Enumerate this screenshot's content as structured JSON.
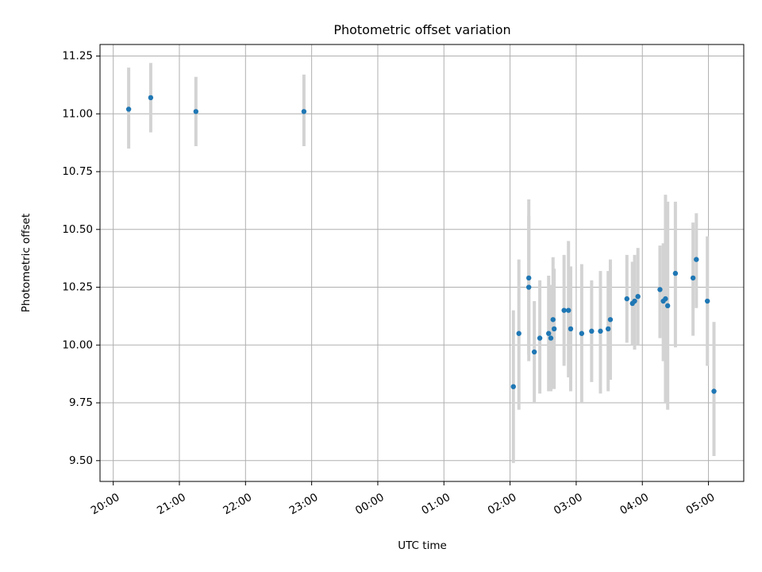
{
  "chart_data": {
    "type": "scatter",
    "title": "Photometric offset variation",
    "xlabel": "UTC time",
    "ylabel": "Photometric offset",
    "grid": true,
    "x_unit": "UTC time (HH:MM)",
    "xlim": [
      "19:48",
      "05:32"
    ],
    "ylim": [
      9.41,
      11.3
    ],
    "xticks": [
      "20:00",
      "21:00",
      "22:00",
      "23:00",
      "00:00",
      "01:00",
      "02:00",
      "03:00",
      "04:00",
      "05:00"
    ],
    "yticks": [
      "9.50",
      "9.75",
      "10.00",
      "10.25",
      "10.50",
      "10.75",
      "11.00",
      "11.25"
    ],
    "colors": {
      "points": "#1f77b4",
      "errorbars": "#d3d3d3",
      "grid": "#b0b0b0"
    },
    "series": [
      {
        "points": [
          {
            "t": "20:14",
            "y": 11.02,
            "lo": 10.85,
            "hi": 11.2
          },
          {
            "t": "20:34",
            "y": 11.07,
            "lo": 10.92,
            "hi": 11.22
          },
          {
            "t": "21:15",
            "y": 11.01,
            "lo": 10.86,
            "hi": 11.16
          },
          {
            "t": "22:53",
            "y": 11.01,
            "lo": 10.86,
            "hi": 11.17
          },
          {
            "t": "02:03",
            "y": 9.82,
            "lo": 9.49,
            "hi": 10.15
          },
          {
            "t": "02:08",
            "y": 10.05,
            "lo": 9.72,
            "hi": 10.37
          },
          {
            "t": "02:17",
            "y": 10.29,
            "lo": 9.96,
            "hi": 10.63
          },
          {
            "t": "02:17",
            "y": 10.25,
            "lo": 9.93,
            "hi": 10.56
          },
          {
            "t": "02:22",
            "y": 9.97,
            "lo": 9.75,
            "hi": 10.19
          },
          {
            "t": "02:27",
            "y": 10.03,
            "lo": 9.79,
            "hi": 10.28
          },
          {
            "t": "02:35",
            "y": 10.05,
            "lo": 9.8,
            "hi": 10.3
          },
          {
            "t": "02:37",
            "y": 10.03,
            "lo": 9.8,
            "hi": 10.26
          },
          {
            "t": "02:39",
            "y": 10.11,
            "lo": 9.81,
            "hi": 10.38
          },
          {
            "t": "02:40",
            "y": 10.07,
            "lo": 9.81,
            "hi": 10.33
          },
          {
            "t": "02:49",
            "y": 10.15,
            "lo": 9.91,
            "hi": 10.39
          },
          {
            "t": "02:53",
            "y": 10.15,
            "lo": 9.86,
            "hi": 10.45
          },
          {
            "t": "02:55",
            "y": 10.07,
            "lo": 9.8,
            "hi": 10.34
          },
          {
            "t": "03:05",
            "y": 10.05,
            "lo": 9.75,
            "hi": 10.35
          },
          {
            "t": "03:14",
            "y": 10.06,
            "lo": 9.84,
            "hi": 10.28
          },
          {
            "t": "03:22",
            "y": 10.06,
            "lo": 9.79,
            "hi": 10.32
          },
          {
            "t": "03:29",
            "y": 10.07,
            "lo": 9.8,
            "hi": 10.32
          },
          {
            "t": "03:31",
            "y": 10.11,
            "lo": 9.85,
            "hi": 10.37
          },
          {
            "t": "03:46",
            "y": 10.2,
            "lo": 10.01,
            "hi": 10.39
          },
          {
            "t": "03:51",
            "y": 10.18,
            "lo": 10.0,
            "hi": 10.36
          },
          {
            "t": "03:53",
            "y": 10.19,
            "lo": 9.98,
            "hi": 10.39
          },
          {
            "t": "03:56",
            "y": 10.21,
            "lo": 10.0,
            "hi": 10.42
          },
          {
            "t": "04:16",
            "y": 10.24,
            "lo": 10.03,
            "hi": 10.43
          },
          {
            "t": "04:19",
            "y": 10.19,
            "lo": 9.93,
            "hi": 10.44
          },
          {
            "t": "04:21",
            "y": 10.2,
            "lo": 9.75,
            "hi": 10.65
          },
          {
            "t": "04:23",
            "y": 10.17,
            "lo": 9.72,
            "hi": 10.62
          },
          {
            "t": "04:30",
            "y": 10.31,
            "lo": 9.99,
            "hi": 10.62
          },
          {
            "t": "04:46",
            "y": 10.29,
            "lo": 10.04,
            "hi": 10.53
          },
          {
            "t": "04:49",
            "y": 10.37,
            "lo": 10.16,
            "hi": 10.57
          },
          {
            "t": "04:59",
            "y": 10.19,
            "lo": 9.91,
            "hi": 10.47
          },
          {
            "t": "05:05",
            "y": 9.8,
            "lo": 9.52,
            "hi": 10.1
          }
        ]
      }
    ]
  }
}
